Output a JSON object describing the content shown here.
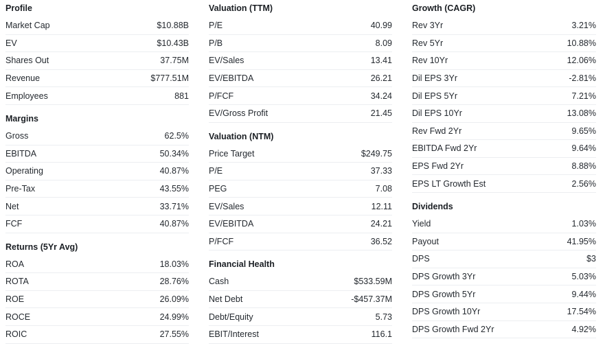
{
  "columns": [
    {
      "sections": [
        {
          "title": "Profile",
          "rows": [
            {
              "label": "Market Cap",
              "value": "$10.88B"
            },
            {
              "label": "EV",
              "value": "$10.43B"
            },
            {
              "label": "Shares Out",
              "value": "37.75M"
            },
            {
              "label": "Revenue",
              "value": "$777.51M"
            },
            {
              "label": "Employees",
              "value": "881"
            }
          ]
        },
        {
          "title": "Margins",
          "rows": [
            {
              "label": "Gross",
              "value": "62.5%"
            },
            {
              "label": "EBITDA",
              "value": "50.34%"
            },
            {
              "label": "Operating",
              "value": "40.87%"
            },
            {
              "label": "Pre-Tax",
              "value": "43.55%"
            },
            {
              "label": "Net",
              "value": "33.71%"
            },
            {
              "label": "FCF",
              "value": "40.87%"
            }
          ]
        },
        {
          "title": "Returns (5Yr Avg)",
          "rows": [
            {
              "label": "ROA",
              "value": "18.03%"
            },
            {
              "label": "ROTA",
              "value": "28.76%"
            },
            {
              "label": "ROE",
              "value": "26.09%"
            },
            {
              "label": "ROCE",
              "value": "24.99%"
            },
            {
              "label": "ROIC",
              "value": "27.55%"
            }
          ]
        }
      ]
    },
    {
      "sections": [
        {
          "title": "Valuation (TTM)",
          "rows": [
            {
              "label": "P/E",
              "value": "40.99"
            },
            {
              "label": "P/B",
              "value": "8.09"
            },
            {
              "label": "EV/Sales",
              "value": "13.41"
            },
            {
              "label": "EV/EBITDA",
              "value": "26.21"
            },
            {
              "label": "P/FCF",
              "value": "34.24"
            },
            {
              "label": "EV/Gross Profit",
              "value": "21.45"
            }
          ]
        },
        {
          "title": "Valuation (NTM)",
          "rows": [
            {
              "label": "Price Target",
              "value": "$249.75"
            },
            {
              "label": "P/E",
              "value": "37.33"
            },
            {
              "label": "PEG",
              "value": "7.08"
            },
            {
              "label": "EV/Sales",
              "value": "12.11"
            },
            {
              "label": "EV/EBITDA",
              "value": "24.21"
            },
            {
              "label": "P/FCF",
              "value": "36.52"
            }
          ]
        },
        {
          "title": "Financial Health",
          "rows": [
            {
              "label": "Cash",
              "value": "$533.59M"
            },
            {
              "label": "Net Debt",
              "value": "-$457.37M"
            },
            {
              "label": "Debt/Equity",
              "value": "5.73"
            },
            {
              "label": "EBIT/Interest",
              "value": "116.1"
            }
          ]
        }
      ]
    },
    {
      "sections": [
        {
          "title": "Growth (CAGR)",
          "rows": [
            {
              "label": "Rev 3Yr",
              "value": "3.21%"
            },
            {
              "label": "Rev 5Yr",
              "value": "10.88%"
            },
            {
              "label": "Rev 10Yr",
              "value": "12.06%"
            },
            {
              "label": "Dil EPS 3Yr",
              "value": "-2.81%"
            },
            {
              "label": "Dil EPS 5Yr",
              "value": "7.21%"
            },
            {
              "label": "Dil EPS 10Yr",
              "value": "13.08%"
            },
            {
              "label": "Rev Fwd 2Yr",
              "value": "9.65%"
            },
            {
              "label": "EBITDA Fwd 2Yr",
              "value": "9.64%"
            },
            {
              "label": "EPS Fwd 2Yr",
              "value": "8.88%"
            },
            {
              "label": "EPS LT Growth Est",
              "value": "2.56%"
            }
          ]
        },
        {
          "title": "Dividends",
          "rows": [
            {
              "label": "Yield",
              "value": "1.03%"
            },
            {
              "label": "Payout",
              "value": "41.95%"
            },
            {
              "label": "DPS",
              "value": "$3"
            },
            {
              "label": "DPS Growth 3Yr",
              "value": "5.03%"
            },
            {
              "label": "DPS Growth 5Yr",
              "value": "9.44%"
            },
            {
              "label": "DPS Growth 10Yr",
              "value": "17.54%"
            },
            {
              "label": "DPS Growth Fwd 2Yr",
              "value": "4.92%"
            }
          ]
        }
      ]
    }
  ]
}
